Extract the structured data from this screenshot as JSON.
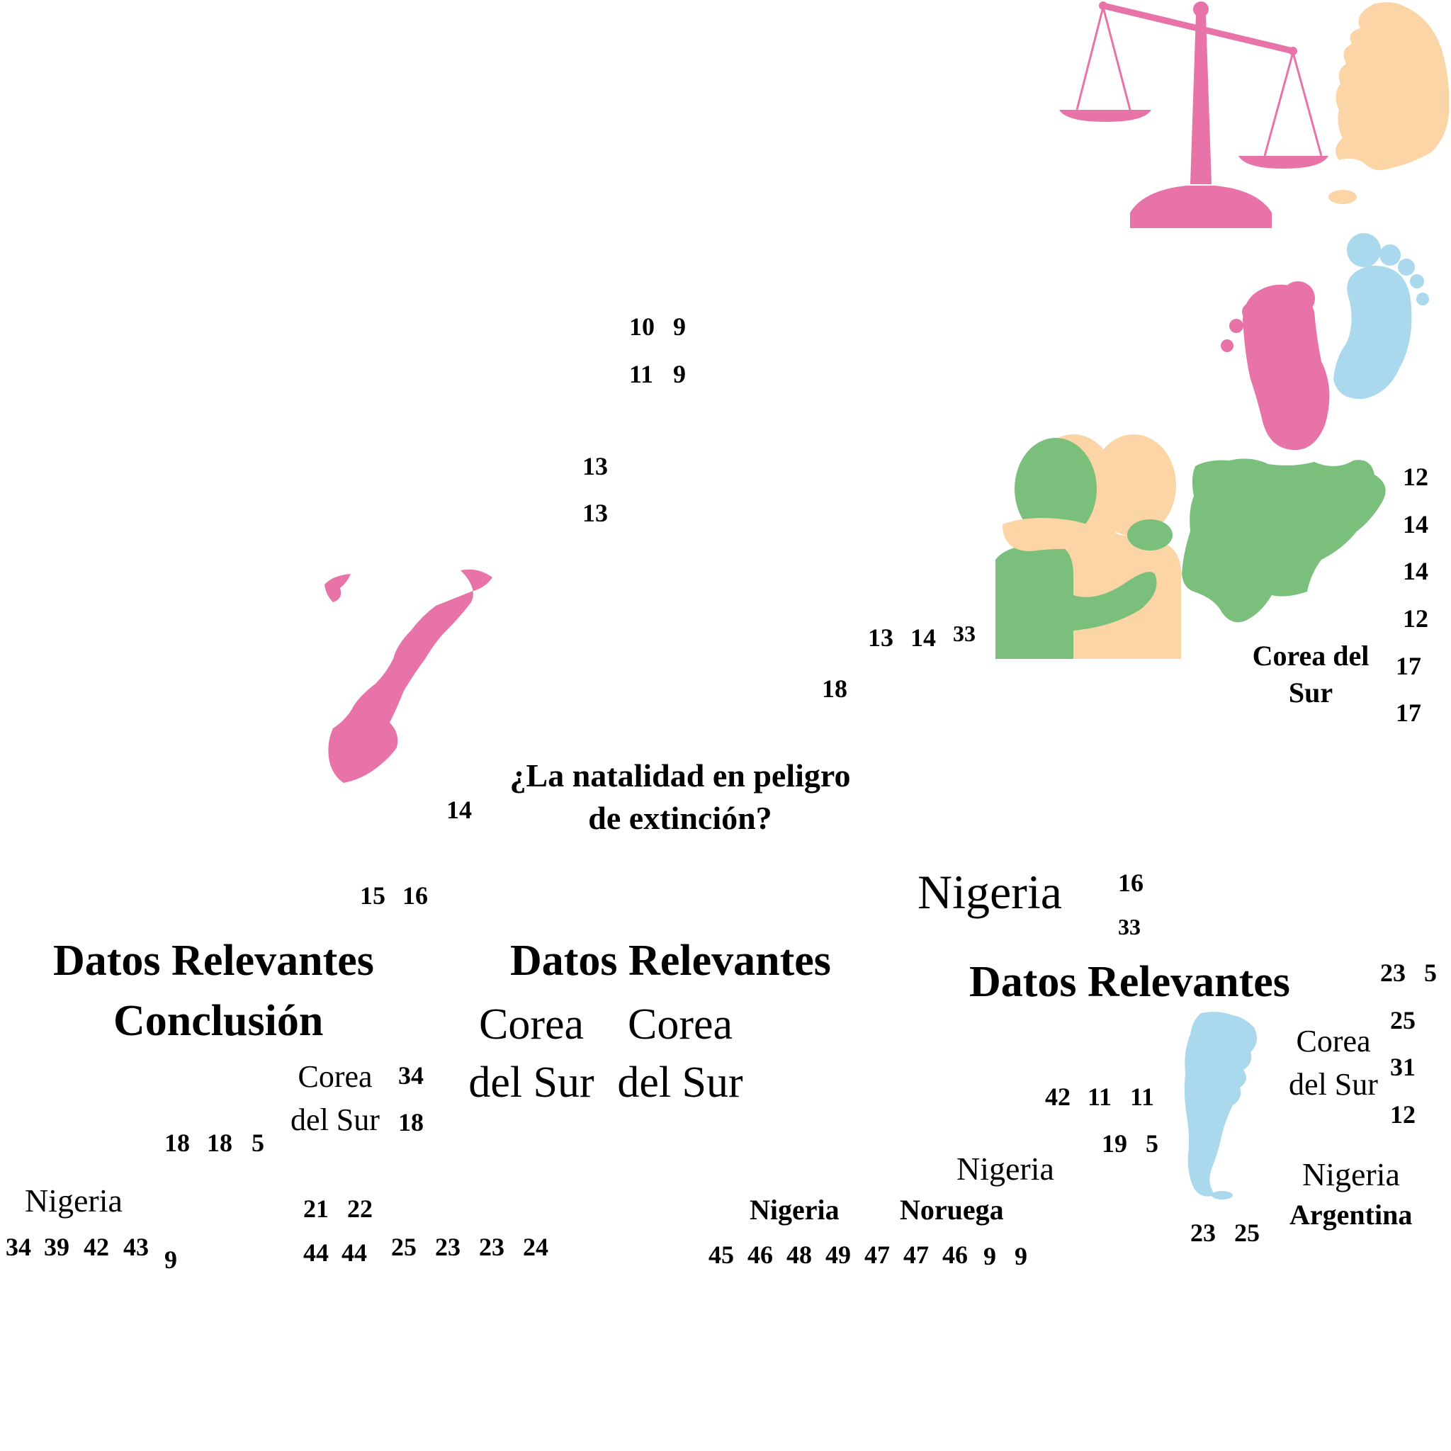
{
  "title": "¿La natalidad en peligro de extinción?",
  "headings": {
    "datos_left": "Datos Relevantes",
    "conclusion": "Conclusión",
    "datos_middle": "Datos Relevantes",
    "datos_right": "Datos Relevantes"
  },
  "labels": {
    "corea_top": "Corea del Sur",
    "nigeria_big": "Nigeria",
    "corea_big_a": "Corea del Sur",
    "corea_big_b": "Corea del Sur",
    "corea_left": "Corea del Sur",
    "nigeria_left": "Nigeria",
    "nigeria_mid_right": "Nigeria",
    "nigeria_bottom_bold": "Nigeria",
    "noruega_bottom_bold": "Noruega",
    "corea_right": "Corea del Sur",
    "nigeria_right": "Nigeria",
    "argentina": "Argentina"
  },
  "numbers": {
    "n_10": "10",
    "n_9a": "9",
    "n_11": "11",
    "n_9b": "9",
    "n_13a": "13",
    "n_13b": "13",
    "r_12a": "12",
    "r_14a": "14",
    "r_14b": "14",
    "r_12b": "12",
    "r_17a": "17",
    "r_17b": "17",
    "h_13": "13",
    "h_14": "14",
    "h_33": "33",
    "n_18": "18",
    "n_14c": "14",
    "n_15": "15",
    "n_16": "16",
    "m_16": "16",
    "m_33": "33",
    "s_23": "23",
    "s_5": "5",
    "s_25": "25",
    "s_31": "31",
    "s_12": "12",
    "a_42": "42",
    "a_11a": "11",
    "a_11b": "11",
    "a_19": "19",
    "a_5": "5",
    "a_23": "23",
    "a_25": "25",
    "l_18a": "18",
    "l_18b": "18",
    "l_5": "5",
    "l_34": "34",
    "l_18c": "18",
    "l_21": "21",
    "l_22": "22",
    "row_left": [
      "34",
      "39",
      "42",
      "43"
    ],
    "l_9": "9",
    "row_mid": [
      "44",
      "44",
      "25",
      "23",
      "23",
      "24"
    ],
    "row_right": [
      "45",
      "46",
      "48",
      "49",
      "47",
      "47",
      "46",
      "9",
      "9"
    ]
  },
  "colors": {
    "pink": "#e773a8",
    "peach": "#fbd5a6",
    "green": "#7bbf7c",
    "lightblue": "#aad8ec"
  },
  "icons": [
    "scales-icon",
    "south-korea-map-icon",
    "baby-feet-icon",
    "hugging-people-icon",
    "nigeria-map-icon",
    "norway-map-icon",
    "argentina-map-icon"
  ]
}
